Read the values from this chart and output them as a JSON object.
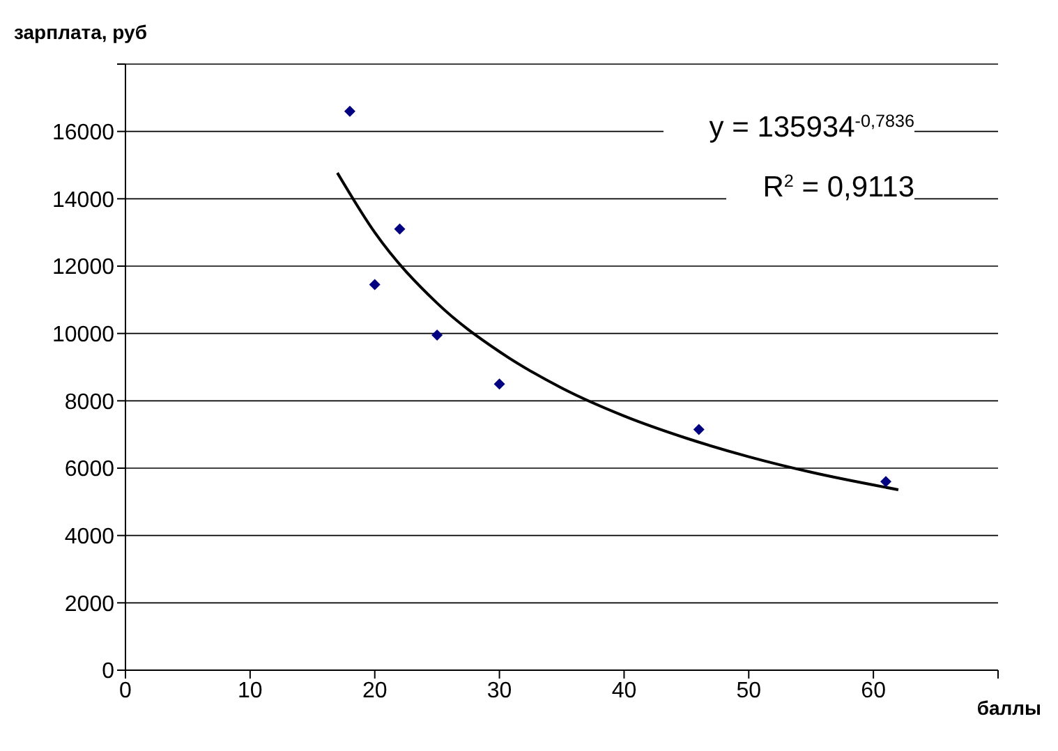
{
  "chart_data": {
    "type": "scatter",
    "xlabel": "баллы",
    "ylabel": "зарплата, руб",
    "xlim": [
      0,
      70
    ],
    "xticks": [
      0,
      10,
      20,
      30,
      40,
      50,
      60,
      {
        "value": 70,
        "label": null
      }
    ],
    "ylim": [
      0,
      18000
    ],
    "yticks": [
      0,
      2000,
      4000,
      6000,
      8000,
      10000,
      12000,
      14000,
      16000,
      {
        "value": 18000,
        "label": null
      }
    ],
    "grid": "y",
    "marker": "diamond",
    "series": [
      {
        "color": "#000080",
        "x": [
          18,
          20,
          22,
          25,
          30,
          46,
          61
        ],
        "values": [
          16600,
          11450,
          13100,
          9950,
          8500,
          7150,
          5600
        ]
      },
      {
        "type": "line",
        "color": "#000000",
        "marker": "none",
        "x": [
          17,
          20,
          25,
          30,
          35,
          40,
          45,
          50,
          55,
          62
        ],
        "values": [
          14770,
          13000,
          10900,
          9460,
          8380,
          7550,
          6890,
          6340,
          5880,
          5360
        ]
      }
    ],
    "annotations": [
      "y = 135934$^{-0,7836}$",
      "R$^{2}$ = 0,9113"
    ]
  }
}
